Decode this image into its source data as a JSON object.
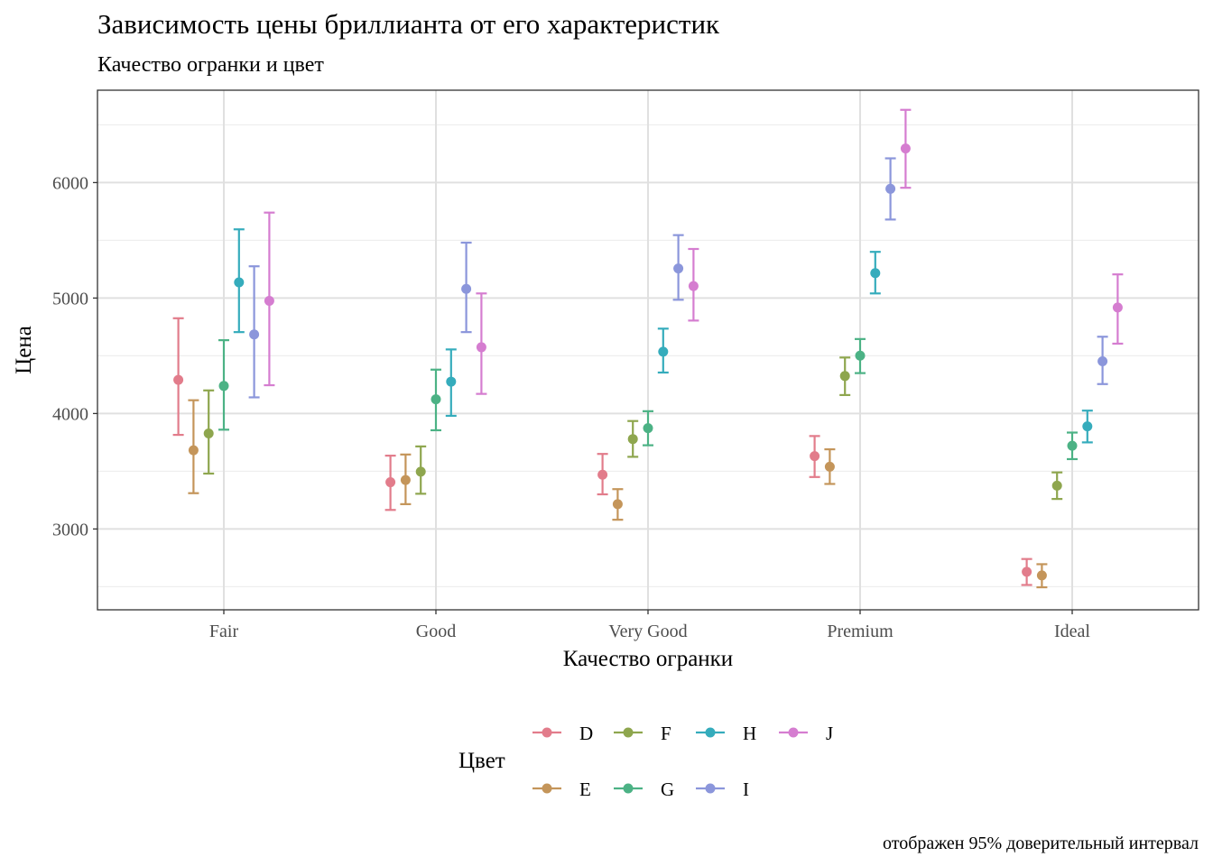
{
  "title": "Зависимость цены бриллианта от его характеристик",
  "subtitle": "Качество огранки и цвет",
  "caption": "отображен 95% доверительный интервал",
  "chart_data": {
    "type": "errorbar",
    "xlabel": "Качество огранки",
    "ylabel": "Цена",
    "categories": [
      "Fair",
      "Good",
      "Very Good",
      "Premium",
      "Ideal"
    ],
    "y_ticks": [
      3000,
      4000,
      5000,
      6000
    ],
    "ylim": [
      2300,
      6800
    ],
    "grid": true,
    "legend": {
      "title": "Цвет",
      "position": "bottom"
    },
    "series": [
      {
        "name": "D",
        "color": "#E27C8B",
        "mean": [
          4291,
          3405,
          3470,
          3631,
          2629
        ],
        "lower": [
          3815,
          3165,
          3300,
          3450,
          2515
        ],
        "upper": [
          4825,
          3635,
          3650,
          3805,
          2740
        ]
      },
      {
        "name": "E",
        "color": "#C4955A",
        "mean": [
          3682,
          3424,
          3215,
          3539,
          2598
        ],
        "lower": [
          3310,
          3215,
          3080,
          3390,
          2495
        ],
        "upper": [
          4115,
          3645,
          3345,
          3690,
          2695
        ]
      },
      {
        "name": "F",
        "color": "#8EA64E",
        "mean": [
          3827,
          3496,
          3779,
          4325,
          3375
        ],
        "lower": [
          3480,
          3305,
          3625,
          4160,
          3260
        ],
        "upper": [
          4200,
          3715,
          3935,
          4485,
          3490
        ]
      },
      {
        "name": "G",
        "color": "#4CB285",
        "mean": [
          4239,
          4123,
          3873,
          4501,
          3721
        ],
        "lower": [
          3860,
          3855,
          3725,
          4350,
          3605
        ],
        "upper": [
          4635,
          4380,
          4020,
          4645,
          3835
        ]
      },
      {
        "name": "H",
        "color": "#35ACBC",
        "mean": [
          5136,
          4276,
          4535,
          5216,
          3889
        ],
        "lower": [
          4705,
          3980,
          4355,
          5040,
          3750
        ],
        "upper": [
          5595,
          4555,
          4735,
          5400,
          4025
        ]
      },
      {
        "name": "I",
        "color": "#8B96DB",
        "mean": [
          4685,
          5079,
          5256,
          5946,
          4452
        ],
        "lower": [
          4140,
          4705,
          4985,
          5680,
          4255
        ],
        "upper": [
          5275,
          5480,
          5545,
          6210,
          4665
        ]
      },
      {
        "name": "J",
        "color": "#D57DD0",
        "mean": [
          4976,
          4574,
          5104,
          6295,
          4918
        ],
        "lower": [
          4245,
          4170,
          4805,
          5955,
          4605
        ],
        "upper": [
          5740,
          5040,
          5425,
          6630,
          5205
        ]
      }
    ]
  }
}
